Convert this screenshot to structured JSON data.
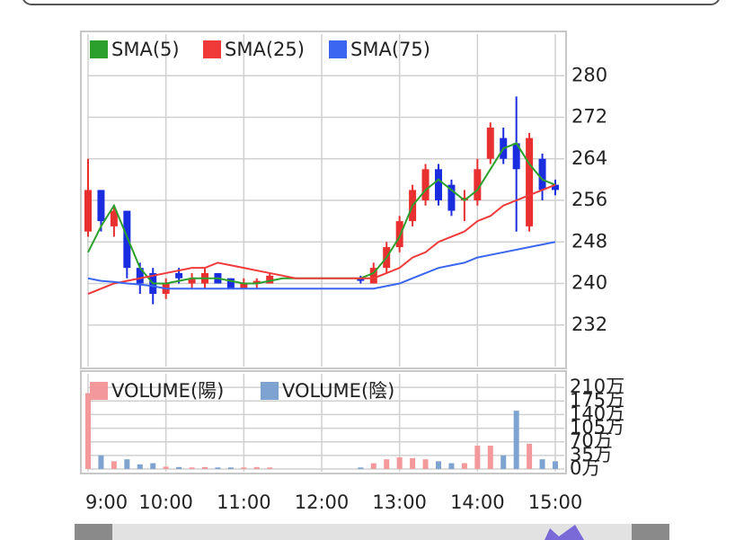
{
  "chart_data": [
    {
      "type": "candlestick",
      "categories": [
        "9:00",
        "9:10",
        "9:20",
        "9:30",
        "9:40",
        "9:50",
        "10:00",
        "10:10",
        "10:20",
        "10:30",
        "10:40",
        "10:50",
        "11:00",
        "11:10",
        "11:20",
        "11:30",
        "11:40",
        "11:50",
        "12:00",
        "12:10",
        "12:20",
        "12:30",
        "12:40",
        "12:50",
        "13:00",
        "13:10",
        "13:20",
        "13:30",
        "13:40",
        "13:50",
        "14:00",
        "14:10",
        "14:20",
        "14:30",
        "14:40",
        "14:50",
        "15:00"
      ],
      "open": [
        250,
        258,
        251,
        254,
        243,
        242,
        238,
        242,
        240,
        240,
        242,
        241,
        239,
        240,
        240,
        null,
        null,
        null,
        null,
        null,
        null,
        241,
        240,
        243,
        247,
        252,
        256,
        262,
        259,
        256,
        256,
        264,
        268,
        267,
        251,
        264,
        259
      ],
      "high": [
        264,
        258,
        255,
        254,
        244,
        243,
        241,
        243,
        242,
        243,
        242,
        241,
        241,
        241,
        242,
        null,
        null,
        null,
        null,
        null,
        null,
        241.5,
        244,
        248,
        253,
        259,
        263,
        263,
        260,
        258,
        264,
        271,
        270,
        276,
        269,
        265,
        260
      ],
      "low": [
        249,
        250,
        249,
        241,
        238,
        236,
        237,
        240,
        239,
        239,
        240,
        239,
        239,
        239,
        240,
        null,
        null,
        null,
        null,
        null,
        null,
        240,
        240,
        242,
        246,
        251,
        255,
        255,
        253,
        252,
        255,
        263,
        263,
        250,
        250,
        256,
        257
      ],
      "close": [
        258,
        252,
        254,
        243,
        240,
        238,
        240,
        241,
        241,
        242,
        240,
        239,
        240,
        240.5,
        241.5,
        null,
        null,
        null,
        null,
        null,
        null,
        240.5,
        243,
        247,
        252,
        258,
        262,
        256,
        254,
        256.5,
        262,
        270,
        264,
        262,
        268,
        258,
        258
      ],
      "up_color": "#e83030",
      "down_color": "#1a2ee0",
      "series": [
        {
          "name": "SMA(5)",
          "color": "#2ca02c",
          "values": [
            246,
            251,
            255,
            249,
            243,
            240,
            240,
            240.5,
            241,
            241,
            241,
            240.5,
            240,
            240,
            240.5,
            241,
            241,
            241,
            241,
            241,
            241,
            241,
            242,
            245,
            249,
            255,
            258,
            260,
            258,
            256,
            258,
            262,
            266,
            267,
            263,
            260,
            259
          ]
        },
        {
          "name": "SMA(25)",
          "color": "#f03a3a",
          "values": [
            238,
            239,
            240,
            240.5,
            241,
            241.5,
            242,
            242.5,
            243,
            243,
            244,
            243.5,
            243,
            242.5,
            242,
            241.5,
            241,
            241,
            241,
            241,
            241,
            241,
            241,
            242,
            243,
            245,
            246,
            248,
            249,
            250,
            252,
            253,
            255,
            256,
            257,
            258,
            259
          ]
        },
        {
          "name": "SMA(75)",
          "color": "#3a66f0",
          "values": [
            241,
            240.5,
            240.3,
            240,
            239.8,
            239.5,
            239,
            239,
            239,
            239,
            239,
            239,
            239,
            239,
            239,
            239,
            239,
            239,
            239,
            239,
            239,
            239,
            239,
            239.5,
            240,
            241,
            242,
            243,
            243.5,
            244,
            245,
            245.5,
            246,
            246.5,
            247,
            247.5,
            248
          ]
        }
      ],
      "ylim": [
        224,
        288
      ],
      "yticks": [
        232,
        240,
        248,
        256,
        264,
        272,
        280
      ],
      "grid": true
    },
    {
      "type": "bar",
      "series": [
        {
          "name": "VOLUME(陽)",
          "color": "#f4999b",
          "values": [
            195,
            null,
            20,
            null,
            null,
            null,
            6,
            null,
            4,
            5,
            null,
            null,
            4,
            5,
            4,
            null,
            null,
            null,
            null,
            null,
            null,
            null,
            15,
            25,
            30,
            28,
            25,
            null,
            null,
            15,
            60,
            60,
            null,
            null,
            65,
            null,
            null
          ]
        },
        {
          "name": "VOLUME(陰)",
          "color": "#7ea3d0",
          "values": [
            null,
            35,
            null,
            25,
            12,
            15,
            null,
            5,
            null,
            null,
            4,
            4,
            null,
            null,
            null,
            null,
            null,
            null,
            null,
            null,
            null,
            4,
            null,
            null,
            null,
            null,
            null,
            20,
            15,
            null,
            null,
            null,
            35,
            150,
            null,
            25,
            20
          ]
        }
      ],
      "ylim": [
        0,
        245
      ],
      "yticks": [
        {
          "value": 0,
          "label": "0万"
        },
        {
          "value": 35,
          "label": "35万"
        },
        {
          "value": 70,
          "label": "70万"
        },
        {
          "value": 105,
          "label": "105万"
        },
        {
          "value": 140,
          "label": "140万"
        },
        {
          "value": 175,
          "label": "175万"
        },
        {
          "value": 210,
          "label": "210万"
        }
      ],
      "grid": true
    }
  ]
}
